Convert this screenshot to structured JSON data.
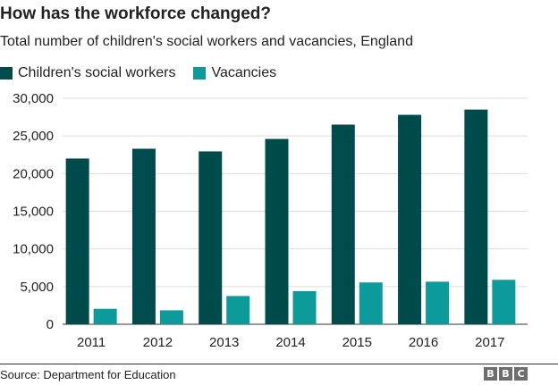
{
  "title": "How has the workforce changed?",
  "subtitle": "Total number of children's social workers and vacancies, England",
  "source": "Source: Department for Education",
  "logo": [
    "B",
    "B",
    "C"
  ],
  "colors": {
    "workers": "#004b4b",
    "vacancies": "#0d9a9a",
    "grid": "#dddddd",
    "axis": "#333333"
  },
  "chart_data": {
    "type": "bar",
    "title": "How has the workforce changed?",
    "categories": [
      "2011",
      "2012",
      "2013",
      "2014",
      "2015",
      "2016",
      "2017"
    ],
    "series": [
      {
        "name": "Children's social workers",
        "values": [
          22000,
          23300,
          22950,
          24600,
          26500,
          27800,
          28500
        ]
      },
      {
        "name": "Vacancies",
        "values": [
          2050,
          1850,
          3750,
          4400,
          5550,
          5650,
          5900
        ]
      }
    ],
    "yticks": [
      "0",
      "5,000",
      "10,000",
      "15,000",
      "20,000",
      "25,000",
      "30,000"
    ],
    "ylim": [
      0,
      30000
    ],
    "grid": true,
    "legend": "top-left"
  }
}
